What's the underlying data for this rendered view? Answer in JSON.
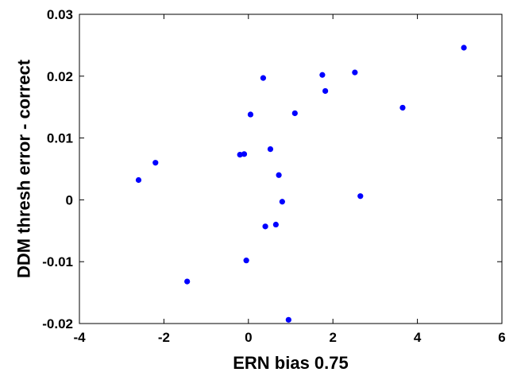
{
  "chart_data": {
    "type": "scatter",
    "xlabel": "ERN bias 0.75",
    "ylabel": "DDM thresh error - correct",
    "xlim": [
      -4,
      6
    ],
    "ylim": [
      -0.02,
      0.03
    ],
    "xticks": [
      -4,
      -2,
      0,
      2,
      4,
      6
    ],
    "yticks": [
      -0.02,
      -0.01,
      0,
      0.01,
      0.02,
      0.03
    ],
    "xtick_labels": [
      "-4",
      "-2",
      "0",
      "2",
      "4",
      "6"
    ],
    "ytick_labels": [
      "-0.02",
      "-0.01",
      "0",
      "0.01",
      "0.02",
      "0.03"
    ],
    "grid": false,
    "marker_color": "#0000ff",
    "points": [
      {
        "x": 5.1,
        "y": 0.0246
      },
      {
        "x": 3.65,
        "y": 0.0149
      },
      {
        "x": 2.65,
        "y": 0.0006
      },
      {
        "x": 2.52,
        "y": 0.0206
      },
      {
        "x": 1.75,
        "y": 0.0202
      },
      {
        "x": 1.82,
        "y": 0.0176
      },
      {
        "x": 1.1,
        "y": 0.014
      },
      {
        "x": 0.35,
        "y": 0.0197
      },
      {
        "x": 0.05,
        "y": 0.0138
      },
      {
        "x": -0.2,
        "y": 0.0073
      },
      {
        "x": -0.1,
        "y": 0.0074
      },
      {
        "x": 0.52,
        "y": 0.0082
      },
      {
        "x": 0.72,
        "y": 0.004
      },
      {
        "x": 0.8,
        "y": -0.0003
      },
      {
        "x": 0.65,
        "y": -0.004
      },
      {
        "x": 0.4,
        "y": -0.0043
      },
      {
        "x": -0.05,
        "y": -0.0098
      },
      {
        "x": -1.45,
        "y": -0.0132
      },
      {
        "x": -2.6,
        "y": 0.0032
      },
      {
        "x": -2.2,
        "y": 0.006
      },
      {
        "x": 0.95,
        "y": -0.0194
      }
    ]
  }
}
